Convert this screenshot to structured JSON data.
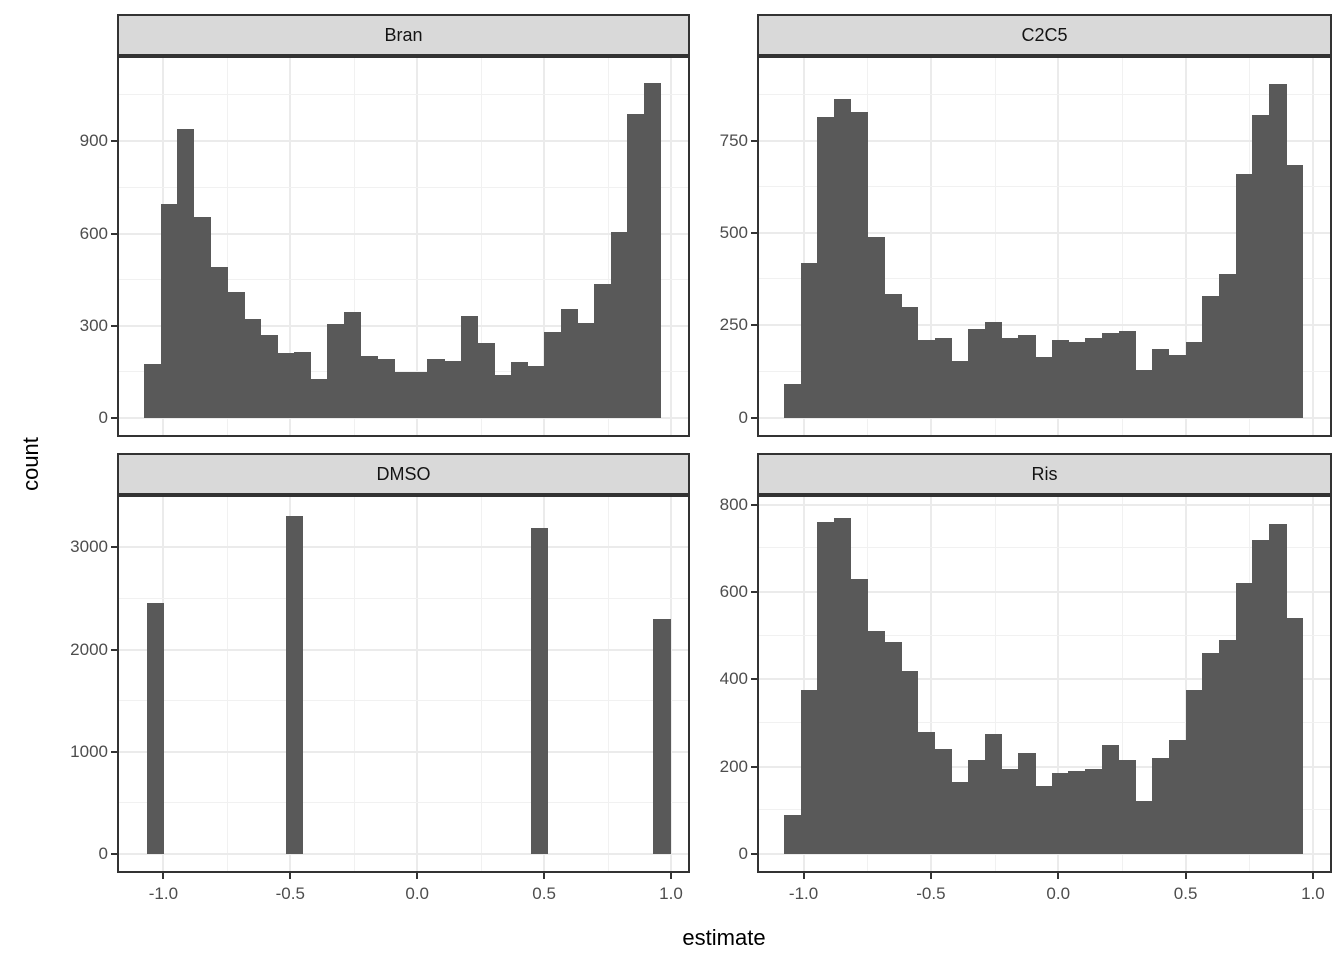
{
  "figure": {
    "x_axis_title": "estimate",
    "y_axis_title": "count",
    "x_domain": [
      -1.175,
      1.067
    ],
    "x_ticks": {
      "values": [
        -1.0,
        -0.5,
        0.0,
        0.5,
        1.0
      ],
      "labels": [
        "-1.0",
        "-0.5",
        "0.0",
        "0.5",
        "1.0"
      ],
      "minor": [
        -0.75,
        -0.25,
        0.25,
        0.75
      ]
    },
    "colors": {
      "bar_fill": "#595959",
      "panel_background": "#ffffff",
      "strip_background": "#d9d9d9",
      "panel_border": "#333333",
      "grid_major": "#ebebeb",
      "grid_minor": "#f1f1f1",
      "tick_text": "#4d4d4d",
      "title_text": "#000000"
    }
  },
  "chart_data": [
    {
      "type": "histogram",
      "panel": "Bran",
      "xlabel": "estimate",
      "ylabel": "count",
      "grid": true,
      "bin_start": -1.077,
      "bin_width": 0.0657,
      "counts": [
        175,
        695,
        940,
        655,
        490,
        410,
        320,
        270,
        210,
        215,
        125,
        305,
        345,
        200,
        190,
        150,
        150,
        190,
        185,
        330,
        245,
        140,
        180,
        170,
        280,
        355,
        310,
        435,
        605,
        990,
        1090
      ],
      "y_ticks": [
        0,
        300,
        600,
        900
      ],
      "y_tick_labels": [
        "0",
        "300",
        "600",
        "900"
      ],
      "y_minor": [
        150,
        450,
        750,
        1050
      ],
      "y_display_max": 1172
    },
    {
      "type": "histogram",
      "panel": "C2C5",
      "xlabel": "estimate",
      "ylabel": "count",
      "grid": true,
      "bin_start": -1.077,
      "bin_width": 0.0657,
      "counts": [
        90,
        420,
        815,
        865,
        830,
        490,
        335,
        300,
        210,
        215,
        155,
        240,
        260,
        215,
        225,
        165,
        210,
        205,
        215,
        230,
        235,
        130,
        185,
        170,
        205,
        330,
        390,
        660,
        820,
        905,
        685
      ],
      "y_ticks": [
        0,
        250,
        500,
        750
      ],
      "y_tick_labels": [
        "0",
        "250",
        "500",
        "750"
      ],
      "y_minor": [
        125,
        375,
        625,
        875
      ],
      "y_display_max": 975
    },
    {
      "type": "histogram",
      "panel": "DMSO",
      "xlabel": "estimate",
      "ylabel": "count",
      "grid": true,
      "bin_width": 0.0657,
      "bars": [
        {
          "x_left": -1.066,
          "count": 2460
        },
        {
          "x_left": -0.518,
          "count": 3310
        },
        {
          "x_left": 0.448,
          "count": 3190
        },
        {
          "x_left": 0.931,
          "count": 2300
        }
      ],
      "y_ticks": [
        0,
        1000,
        2000,
        3000
      ],
      "y_tick_labels": [
        "0",
        "1000",
        "2000",
        "3000"
      ],
      "y_minor": [
        500,
        1500,
        2500
      ],
      "y_display_max": 3494
    },
    {
      "type": "histogram",
      "panel": "Ris",
      "xlabel": "estimate",
      "ylabel": "count",
      "grid": true,
      "bin_start": -1.077,
      "bin_width": 0.0657,
      "counts": [
        90,
        375,
        760,
        770,
        630,
        510,
        485,
        420,
        280,
        240,
        165,
        215,
        275,
        195,
        230,
        155,
        185,
        190,
        195,
        250,
        215,
        120,
        220,
        260,
        375,
        460,
        490,
        620,
        720,
        755,
        540
      ],
      "y_ticks": [
        0,
        200,
        400,
        600,
        800
      ],
      "y_tick_labels": [
        "0",
        "200",
        "400",
        "600",
        "800"
      ],
      "y_minor": [
        100,
        300,
        500,
        700
      ],
      "y_display_max": 818
    }
  ]
}
